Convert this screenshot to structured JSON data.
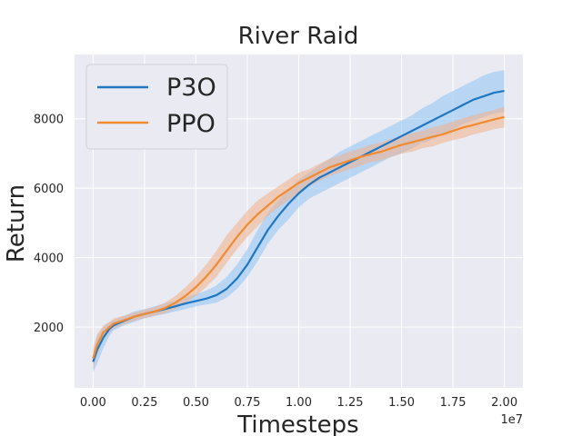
{
  "chart_data": {
    "type": "line",
    "title": "River Raid",
    "xlabel": "Timesteps",
    "ylabel": "Return",
    "x_offset_label": "1e7",
    "xlim": [
      -0.09,
      2.09
    ],
    "ylim": [
      250,
      9850
    ],
    "x_ticks": [
      0.0,
      0.25,
      0.5,
      0.75,
      1.0,
      1.25,
      1.5,
      1.75,
      2.0
    ],
    "x_tick_labels": [
      "0.00",
      "0.25",
      "0.50",
      "0.75",
      "1.00",
      "1.25",
      "1.50",
      "1.75",
      "2.00"
    ],
    "y_ticks": [
      2000,
      4000,
      6000,
      8000
    ],
    "y_tick_labels": [
      "2000",
      "4000",
      "6000",
      "8000"
    ],
    "grid": true,
    "legend_position": "top-left",
    "colors": {
      "P3O": "#1f77c4",
      "P3O_band": "#8ec3f5",
      "PPO": "#f28a30",
      "PPO_band": "#f0b08a",
      "background": "#eaeaf2",
      "grid": "#ffffff"
    },
    "series": [
      {
        "name": "P3O",
        "x": [
          0.0,
          0.02,
          0.05,
          0.08,
          0.1,
          0.15,
          0.2,
          0.25,
          0.3,
          0.35,
          0.4,
          0.45,
          0.5,
          0.55,
          0.6,
          0.65,
          0.7,
          0.75,
          0.8,
          0.85,
          0.9,
          0.95,
          1.0,
          1.05,
          1.1,
          1.15,
          1.2,
          1.25,
          1.3,
          1.35,
          1.4,
          1.45,
          1.5,
          1.55,
          1.6,
          1.65,
          1.7,
          1.75,
          1.8,
          1.85,
          1.9,
          1.95,
          2.0
        ],
        "values": [
          1000,
          1350,
          1700,
          1950,
          2050,
          2180,
          2300,
          2380,
          2450,
          2520,
          2600,
          2680,
          2750,
          2820,
          2920,
          3100,
          3400,
          3800,
          4300,
          4800,
          5200,
          5550,
          5850,
          6100,
          6300,
          6450,
          6600,
          6750,
          6900,
          7050,
          7200,
          7350,
          7500,
          7650,
          7800,
          7950,
          8100,
          8250,
          8400,
          8550,
          8650,
          8750,
          8800
        ],
        "lower": [
          700,
          950,
          1400,
          1750,
          1900,
          2050,
          2150,
          2250,
          2320,
          2380,
          2450,
          2520,
          2600,
          2650,
          2700,
          2850,
          3100,
          3450,
          3900,
          4400,
          4800,
          5100,
          5450,
          5700,
          5850,
          6000,
          6150,
          6300,
          6450,
          6600,
          6750,
          6900,
          7000,
          7150,
          7300,
          7400,
          7550,
          7700,
          7850,
          7950,
          8050,
          8150,
          8200
        ],
        "upper": [
          1300,
          1750,
          2000,
          2150,
          2200,
          2320,
          2450,
          2520,
          2600,
          2680,
          2750,
          2850,
          2950,
          3050,
          3200,
          3450,
          3800,
          4250,
          4800,
          5300,
          5650,
          5950,
          6250,
          6450,
          6650,
          6850,
          7050,
          7200,
          7350,
          7500,
          7650,
          7800,
          7950,
          8100,
          8300,
          8450,
          8650,
          8800,
          8950,
          9100,
          9250,
          9350,
          9400
        ]
      },
      {
        "name": "PPO",
        "x": [
          0.0,
          0.02,
          0.05,
          0.08,
          0.1,
          0.15,
          0.2,
          0.25,
          0.3,
          0.35,
          0.4,
          0.45,
          0.5,
          0.55,
          0.6,
          0.65,
          0.7,
          0.75,
          0.8,
          0.85,
          0.9,
          0.95,
          1.0,
          1.05,
          1.1,
          1.15,
          1.2,
          1.25,
          1.3,
          1.35,
          1.4,
          1.45,
          1.5,
          1.55,
          1.6,
          1.65,
          1.7,
          1.75,
          1.8,
          1.85,
          1.9,
          1.95,
          2.0
        ],
        "values": [
          1100,
          1500,
          1850,
          2000,
          2100,
          2200,
          2300,
          2380,
          2450,
          2550,
          2700,
          2900,
          3150,
          3450,
          3800,
          4200,
          4600,
          4950,
          5250,
          5500,
          5750,
          5950,
          6150,
          6300,
          6450,
          6600,
          6700,
          6800,
          6900,
          6980,
          7050,
          7150,
          7250,
          7320,
          7400,
          7480,
          7550,
          7650,
          7750,
          7820,
          7900,
          7980,
          8050
        ],
        "lower": [
          800,
          1200,
          1650,
          1850,
          1950,
          2080,
          2180,
          2260,
          2330,
          2400,
          2520,
          2700,
          2900,
          3150,
          3450,
          3850,
          4250,
          4600,
          4900,
          5200,
          5450,
          5650,
          5850,
          6050,
          6200,
          6350,
          6450,
          6550,
          6650,
          6750,
          6800,
          6900,
          7000,
          7050,
          7150,
          7200,
          7300,
          7380,
          7450,
          7550,
          7620,
          7700,
          7750
        ],
        "upper": [
          1400,
          1800,
          2050,
          2150,
          2250,
          2330,
          2420,
          2500,
          2580,
          2700,
          2900,
          3150,
          3450,
          3800,
          4200,
          4650,
          5000,
          5350,
          5650,
          5850,
          6050,
          6250,
          6450,
          6550,
          6700,
          6850,
          6950,
          7050,
          7150,
          7250,
          7320,
          7420,
          7500,
          7580,
          7650,
          7750,
          7820,
          7920,
          8020,
          8100,
          8180,
          8250,
          8350
        ]
      }
    ]
  }
}
